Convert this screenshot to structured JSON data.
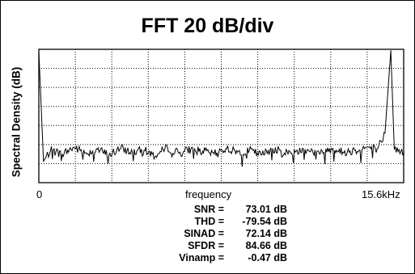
{
  "chart_data": {
    "type": "line",
    "title": "FFT 20 dB/div",
    "xlabel": "frequency",
    "ylabel": "Spectral Density (dB)",
    "x_tick_labels": [
      "0",
      "15.6kHz"
    ],
    "xlim": [
      0,
      15.6
    ],
    "x_unit": "kHz",
    "ylim": [
      -140,
      0
    ],
    "y_unit": "dB",
    "grid": true,
    "grid_style": "dotted",
    "line_color": "#000000",
    "series": [
      {
        "x": [
          0,
          0.2,
          0.5,
          1,
          1.5,
          2,
          2.5,
          3,
          3.5,
          4,
          4.5,
          5,
          5.5,
          6,
          6.5,
          7,
          7.5,
          8,
          8.5,
          9,
          9.5,
          10,
          10.5,
          11,
          11.5,
          12,
          12.5,
          13,
          13.5,
          14,
          14.5,
          14.8,
          15.05,
          15.2,
          15.6
        ],
        "y": [
          -2,
          -118,
          -106,
          -110,
          -103,
          -109,
          -105,
          -111,
          -104,
          -108,
          -106,
          -112,
          -103,
          -109,
          -105,
          -107,
          -110,
          -104,
          -108,
          -106,
          -111,
          -104,
          -109,
          -107,
          -105,
          -110,
          -104,
          -108,
          -106,
          -103,
          -104,
          -88,
          -1,
          -105,
          -108
        ]
      }
    ]
  },
  "stats": [
    {
      "label": "SNR =",
      "value": "73.01 dB"
    },
    {
      "label": "THD =",
      "value": "-79.54 dB"
    },
    {
      "label": "SINAD =",
      "value": "72.14 dB"
    },
    {
      "label": "SFDR =",
      "value": "84.66 dB"
    },
    {
      "label": "Vinamp =",
      "value": "-0.47 dB"
    }
  ]
}
